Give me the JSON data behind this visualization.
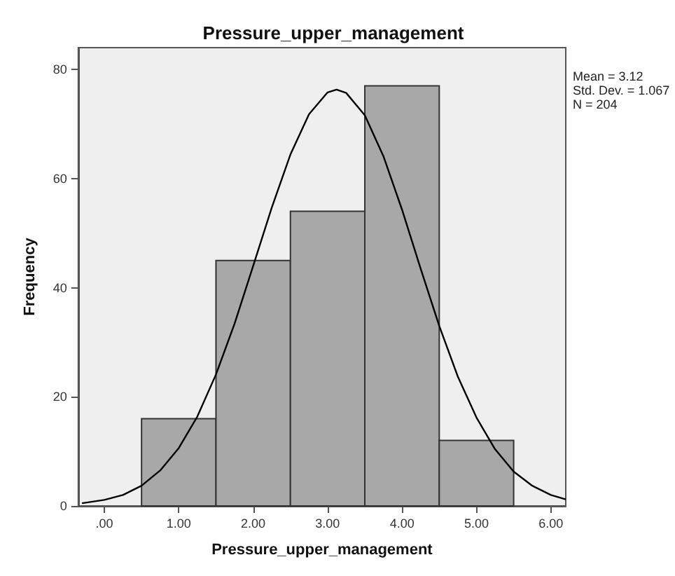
{
  "chart_data": {
    "type": "histogram",
    "title": "Pressure_upper_management",
    "xlabel": "Pressure_upper_management",
    "ylabel": "Frequency",
    "bins": [
      0.5,
      1.5,
      2.5,
      3.5,
      4.5,
      5.5
    ],
    "values": [
      16,
      45,
      54,
      77,
      12
    ],
    "color": "#a8a8a8",
    "series": [
      {
        "type": "line",
        "color": "#000000",
        "x": [
          -0.3,
          0,
          0.25,
          0.5,
          0.75,
          1.0,
          1.25,
          1.5,
          1.75,
          2.0,
          2.25,
          2.5,
          2.75,
          3.0,
          3.12,
          3.25,
          3.5,
          3.75,
          4.0,
          4.25,
          4.5,
          4.75,
          5.0,
          5.25,
          5.5,
          5.75,
          6.0,
          6.2
        ],
        "values": [
          0.5,
          1.1,
          2.0,
          3.7,
          6.5,
          10.6,
          16.4,
          24.1,
          33.4,
          44.0,
          54.7,
          64.4,
          71.8,
          75.8,
          76.3,
          75.7,
          71.6,
          64.1,
          54.3,
          43.5,
          33.0,
          23.7,
          16.2,
          10.4,
          6.3,
          3.7,
          2.0,
          1.2
        ]
      }
    ],
    "xlim": [
      -0.35,
      6.2
    ],
    "xticks": [
      {
        "value": 0,
        "label": ".00"
      },
      {
        "value": 1,
        "label": "1.00"
      },
      {
        "value": 2,
        "label": "2.00"
      },
      {
        "value": 3,
        "label": "3.00"
      },
      {
        "value": 4,
        "label": "4.00"
      },
      {
        "value": 5,
        "label": "5.00"
      },
      {
        "value": 6,
        "label": "6.00"
      }
    ],
    "ylim": [
      0,
      84
    ],
    "yticks": [
      0,
      20,
      40,
      60,
      80
    ],
    "annotations": [
      "Mean = 3.12",
      "Std. Dev. = 1.067",
      "N = 204"
    ],
    "grid": false
  }
}
